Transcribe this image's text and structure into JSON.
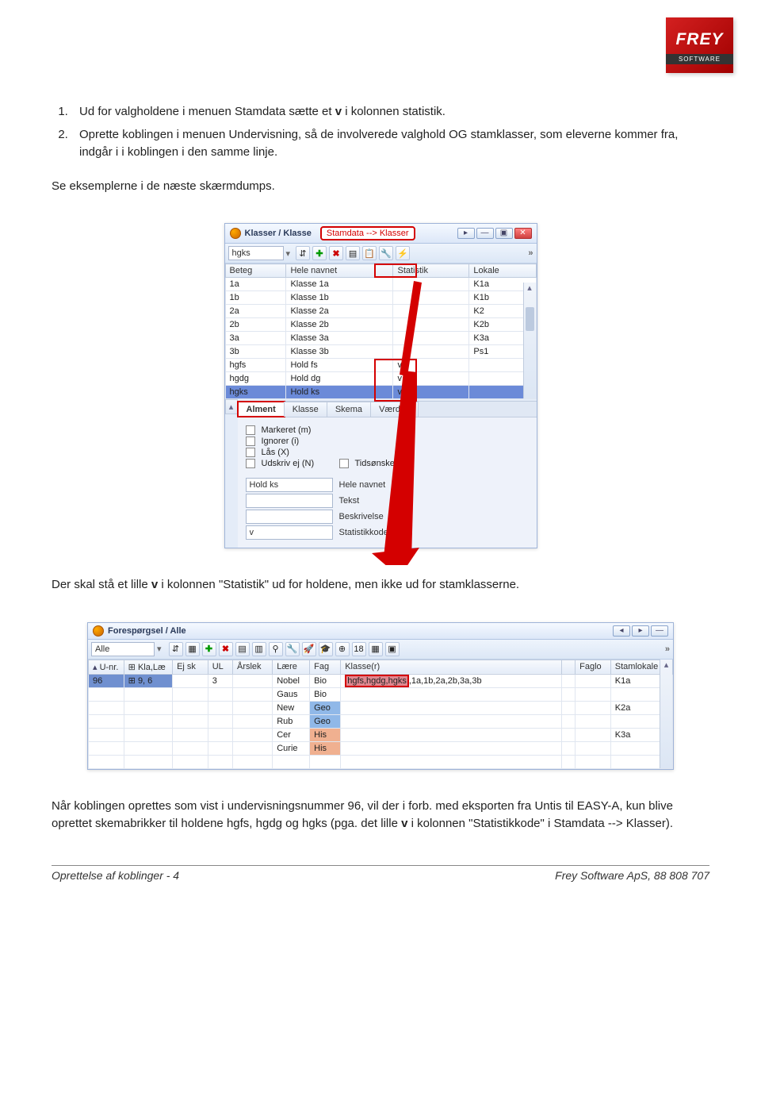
{
  "logo": {
    "brand": "FREY",
    "sub": "SOFTWARE"
  },
  "list": {
    "item1_pre": "Ud for valgholdene i menuen Stamdata sætte et ",
    "item1_bold": "v",
    "item1_post": " i kolonnen statistik.",
    "item2": "Oprette koblingen i menuen Undervisning, så de involverede valghold OG stamklasser, som eleverne kommer fra, indgår i i koblingen i den samme linje."
  },
  "p1": "Se eksemplerne i de næste skærmdumps.",
  "p2_pre": "Der skal stå et lille ",
  "p2_bold": "v",
  "p2_post": " i kolonnen \"Statistik\" ud for holdene, men ikke ud for stamklasserne.",
  "p3_pre": "Når koblingen oprettes som vist i undervisningsnummer 96, vil der i forb. med eksporten fra Untis til EASY-A, kun blive oprettet skemabrikker til holdene hgfs, hgdg og hgks (pga. det lille ",
  "p3_bold": "v",
  "p3_post": " i kolonnen \"Statistikkode\" i Stamdata --> Klasser).",
  "ss1": {
    "title": "Klasser / Klasse",
    "callout": "Stamdata --> Klasser",
    "dropdown": "hgks",
    "headers": [
      "Beteg",
      "Hele navnet",
      "Statistik",
      "Lokale"
    ],
    "rows": [
      [
        "1a",
        "Klasse 1a",
        "",
        "K1a"
      ],
      [
        "1b",
        "Klasse 1b",
        "",
        "K1b"
      ],
      [
        "2a",
        "Klasse 2a",
        "",
        "K2"
      ],
      [
        "2b",
        "Klasse 2b",
        "",
        "K2b"
      ],
      [
        "3a",
        "Klasse 3a",
        "",
        "K3a"
      ],
      [
        "3b",
        "Klasse 3b",
        "",
        "Ps1"
      ],
      [
        "hgfs",
        "Hold fs",
        "v",
        ""
      ],
      [
        "hgdg",
        "Hold dg",
        "v",
        ""
      ],
      [
        "hgks",
        "Hold ks",
        "v",
        ""
      ]
    ],
    "tabs": [
      "Alment",
      "Klasse",
      "Skema",
      "Værdier"
    ],
    "checks": [
      "Markeret (m)",
      "Ignorer (i)",
      "Lås (X)",
      "Udskriv ej (N)"
    ],
    "check_tids": "Tidsønsker",
    "form": [
      {
        "val": "Hold ks",
        "lbl": "Hele navnet"
      },
      {
        "val": "",
        "lbl": "Tekst"
      },
      {
        "val": "",
        "lbl": "Beskrivelse"
      },
      {
        "val": "v",
        "lbl": "Statistikkode"
      }
    ],
    "red_arrow_color": "#d40000"
  },
  "ss2": {
    "title": "Forespørgsel / Alle",
    "dropdown": "Alle",
    "headers": [
      "U-nr.",
      "Kla,Læ",
      "Ej sk",
      "UL",
      "Årslek",
      "Lære",
      "Fag",
      "Klasse(r)",
      "",
      "Faglo",
      "Stamlokale"
    ],
    "rows": [
      {
        "unr": "96",
        "kla": "9, 6",
        "ejsk": "",
        "ul": "3",
        "ars": "",
        "laere": "Nobel",
        "fag": "Bio",
        "klasse_hl": "hgfs,hgdg,hgks",
        "klasse_rest": "1a,1b,2a,2b,3a,3b",
        "blank": "",
        "faglo": "",
        "staml": "K1a",
        "fagclass": ""
      },
      {
        "unr": "",
        "kla": "",
        "ejsk": "",
        "ul": "",
        "ars": "",
        "laere": "Gaus",
        "fag": "Bio",
        "klasse_hl": "",
        "klasse_rest": "",
        "blank": "",
        "faglo": "",
        "staml": "",
        "fagclass": ""
      },
      {
        "unr": "",
        "kla": "",
        "ejsk": "",
        "ul": "",
        "ars": "",
        "laere": "New",
        "fag": "Geo",
        "klasse_hl": "",
        "klasse_rest": "",
        "blank": "",
        "faglo": "",
        "staml": "K2a",
        "fagclass": "cell-geo"
      },
      {
        "unr": "",
        "kla": "",
        "ejsk": "",
        "ul": "",
        "ars": "",
        "laere": "Rub",
        "fag": "Geo",
        "klasse_hl": "",
        "klasse_rest": "",
        "blank": "",
        "faglo": "",
        "staml": "",
        "fagclass": "cell-geo"
      },
      {
        "unr": "",
        "kla": "",
        "ejsk": "",
        "ul": "",
        "ars": "",
        "laere": "Cer",
        "fag": "His",
        "klasse_hl": "",
        "klasse_rest": "",
        "blank": "",
        "faglo": "",
        "staml": "K3a",
        "fagclass": "cell-his"
      },
      {
        "unr": "",
        "kla": "",
        "ejsk": "",
        "ul": "",
        "ars": "",
        "laere": "Curie",
        "fag": "His",
        "klasse_hl": "",
        "klasse_rest": "",
        "blank": "",
        "faglo": "",
        "staml": "",
        "fagclass": "cell-his"
      }
    ]
  },
  "footer": {
    "left": "Oprettelse af koblinger  - 4",
    "right": "Frey Software ApS, 88 808 707"
  }
}
